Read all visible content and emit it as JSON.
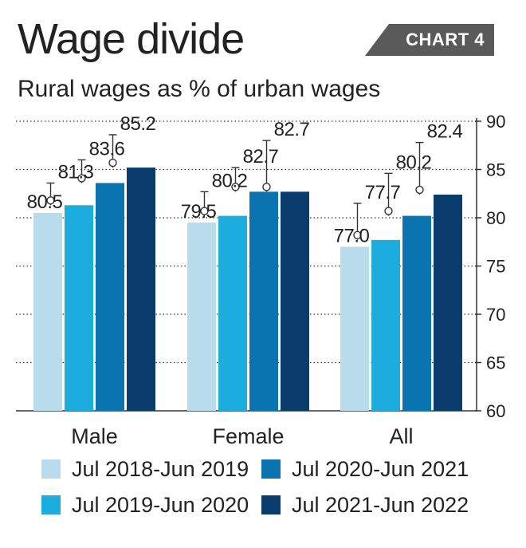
{
  "header": {
    "title": "Wage divide",
    "badge": "CHART 4",
    "subtitle": "Rural wages as % of urban wages"
  },
  "chart_data": {
    "type": "bar",
    "title": "Wage divide",
    "subtitle": "Rural wages as % of urban wages",
    "categories": [
      "Male",
      "Female",
      "All"
    ],
    "series": [
      {
        "name": "Jul 2018-Jun 2019",
        "color": "#b9dcec",
        "values": [
          80.5,
          79.5,
          77.0
        ],
        "labels": [
          "80.5",
          "79.5",
          "77.0"
        ]
      },
      {
        "name": "Jul 2019-Jun 2020",
        "color": "#1cacdd",
        "values": [
          81.3,
          80.2,
          77.7
        ],
        "labels": [
          "81.3",
          "80.2",
          "77.7"
        ]
      },
      {
        "name": "Jul 2020-Jun 2021",
        "color": "#0a74b0",
        "values": [
          83.6,
          82.7,
          80.2
        ],
        "labels": [
          "83.6",
          "82.7",
          "80.2"
        ]
      },
      {
        "name": "Jul 2021-Jun 2022",
        "color": "#0a3d6e",
        "values": [
          85.2,
          82.7,
          82.4
        ],
        "labels": [
          "85.2",
          "82.7",
          "82.4"
        ]
      }
    ],
    "error_bars": {
      "series": [
        1,
        2,
        3
      ],
      "low": [
        [
          81.3,
          80.2,
          77.7
        ],
        [
          83.6,
          82.7,
          80.2
        ],
        [
          85.2,
          82.7,
          82.4
        ]
      ],
      "high": [
        [
          83.6,
          82.7,
          81.5
        ],
        [
          86.0,
          85.2,
          84.6
        ],
        [
          88.6,
          88.0,
          87.8
        ]
      ]
    },
    "ylim": [
      60,
      90
    ],
    "yticks": [
      60,
      65,
      70,
      75,
      80,
      85,
      90
    ],
    "y_axis_position": "right",
    "grid": "dotted horizontal",
    "legend_position": "bottom",
    "colors": {
      "text": "#222222",
      "grid": "#333333",
      "marker_fill": "#ffffff"
    }
  }
}
